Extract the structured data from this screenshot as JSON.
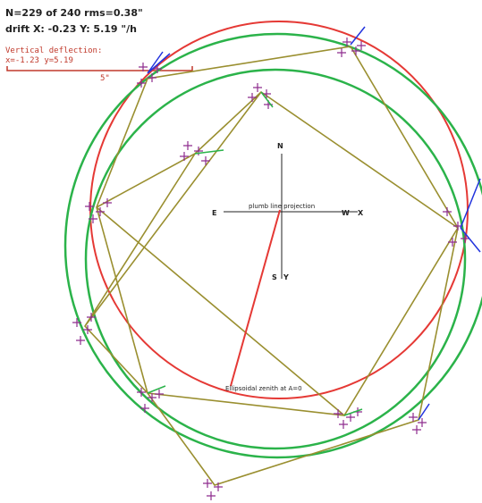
{
  "header": {
    "stats": "N=229 of 240   rms=0.38\"",
    "drift": "drift  X: -0.23  Y: 5.19 \"/h"
  },
  "deflection": {
    "title": "Vertical deflection:",
    "values": "x=-1.23  y=5.19",
    "scale": "5\""
  },
  "axes": {
    "north": "N",
    "east": "E",
    "west": "W",
    "x": "X",
    "south": "S",
    "y": "Y"
  },
  "labels": {
    "plumb": "plumb line projection",
    "zenith": "Ellipsoidal zenith at A=0"
  }
}
